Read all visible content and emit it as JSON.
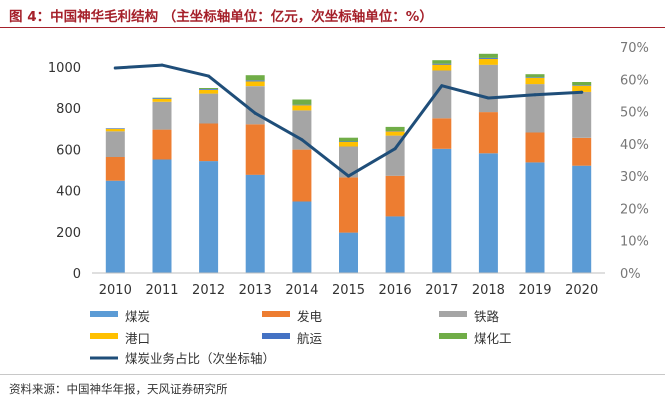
{
  "figure": {
    "title": "图 4：中国神华毛利结构 （主坐标轴单位：亿元，次坐标轴单位：%）",
    "source": "资料来源：中国神华年报，天风证券研究所"
  },
  "colors": {
    "title": "#a5202a",
    "coal": "#5b9bd5",
    "power": "#ed7d31",
    "railway": "#a5a5a5",
    "port": "#ffc000",
    "shipping": "#4472c4",
    "coal_chemical": "#70ad47",
    "line": "#1f4e79"
  },
  "chart_data": {
    "type": "bar",
    "stacked": true,
    "categories": [
      "2010",
      "2011",
      "2012",
      "2013",
      "2014",
      "2015",
      "2016",
      "2017",
      "2018",
      "2019",
      "2020"
    ],
    "series": [
      {
        "name": "煤炭",
        "color": "#5b9bd5",
        "values": [
          448,
          551,
          543,
          477,
          347,
          196,
          275,
          603,
          581,
          537,
          521
        ]
      },
      {
        "name": "发电",
        "color": "#ed7d31",
        "values": [
          115,
          145,
          183,
          245,
          252,
          268,
          197,
          148,
          200,
          145,
          135
        ]
      },
      {
        "name": "铁路",
        "color": "#a5a5a5",
        "values": [
          125,
          135,
          145,
          185,
          190,
          150,
          195,
          232,
          230,
          235,
          223
        ]
      },
      {
        "name": "港口",
        "color": "#ffc000",
        "values": [
          12,
          14,
          18,
          23,
          25,
          22,
          20,
          28,
          28,
          30,
          30
        ]
      },
      {
        "name": "航运",
        "color": "#4472c4",
        "values": [
          3,
          4,
          4,
          5,
          3,
          3,
          2,
          5,
          5,
          3,
          3
        ]
      },
      {
        "name": "煤化工",
        "color": "#70ad47",
        "values": [
          0,
          2,
          5,
          25,
          25,
          18,
          20,
          17,
          20,
          15,
          15
        ]
      }
    ],
    "line_series": {
      "name": "煤炭业务占比（次坐标轴）",
      "axis": "secondary",
      "color": "#1f4e79",
      "values": [
        63.5,
        64.4,
        61.0,
        49.5,
        41.3,
        30.0,
        38.5,
        58.0,
        54.2,
        55.2,
        56.0
      ]
    },
    "y_ticks": [
      "0",
      "200",
      "400",
      "600",
      "800",
      "1000"
    ],
    "ylim": [
      0,
      1000
    ],
    "y2_ticks": [
      "0%",
      "10%",
      "20%",
      "30%",
      "40%",
      "50%",
      "60%",
      "70%"
    ],
    "y2lim": [
      0,
      70
    ],
    "grid": false,
    "legend": "bottom"
  }
}
